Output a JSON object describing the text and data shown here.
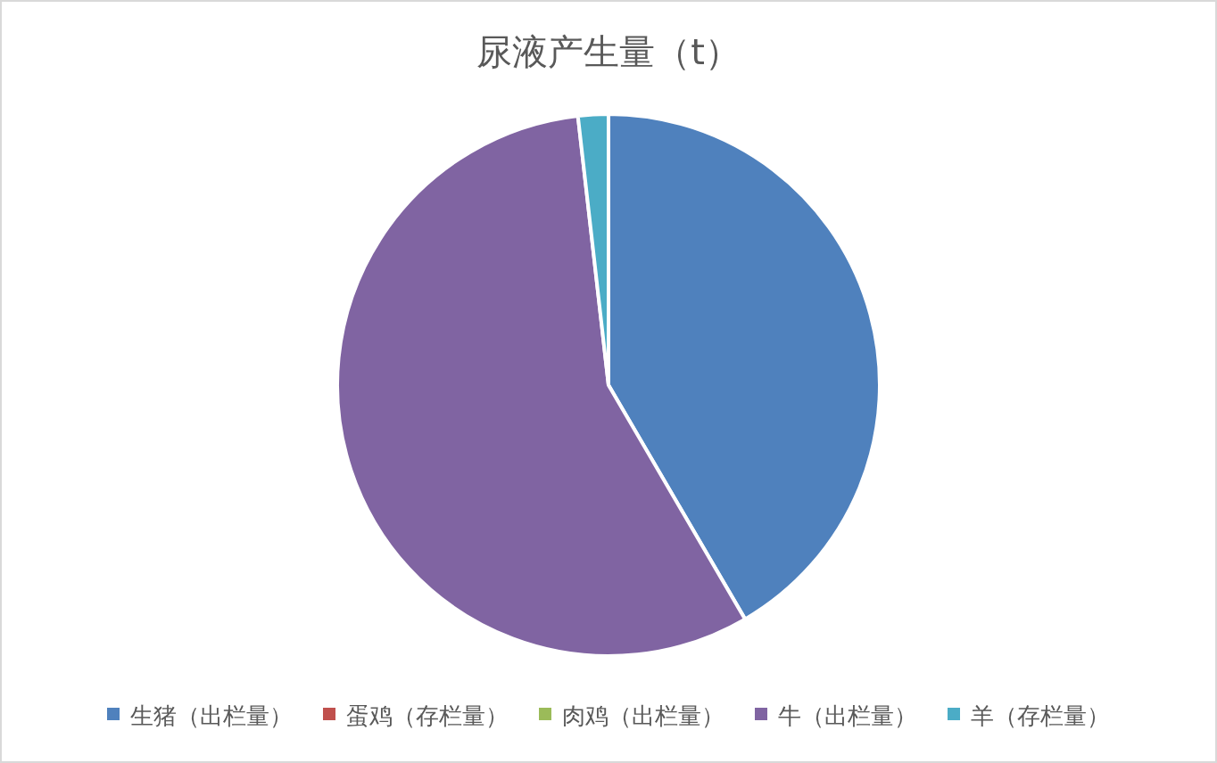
{
  "chart_data": {
    "type": "pie",
    "title": "尿液产生量（t）",
    "categories": [
      "生猪（出栏量）",
      "蛋鸡（存栏量）",
      "肉鸡（出栏量）",
      "牛（出栏量）",
      "羊（存栏量）"
    ],
    "values": [
      41.6,
      0,
      0,
      56.6,
      1.8
    ],
    "colors": [
      "#4f81bd",
      "#c0504d",
      "#9bbb59",
      "#8064a2",
      "#4bacc6"
    ],
    "legend": "bottom"
  }
}
